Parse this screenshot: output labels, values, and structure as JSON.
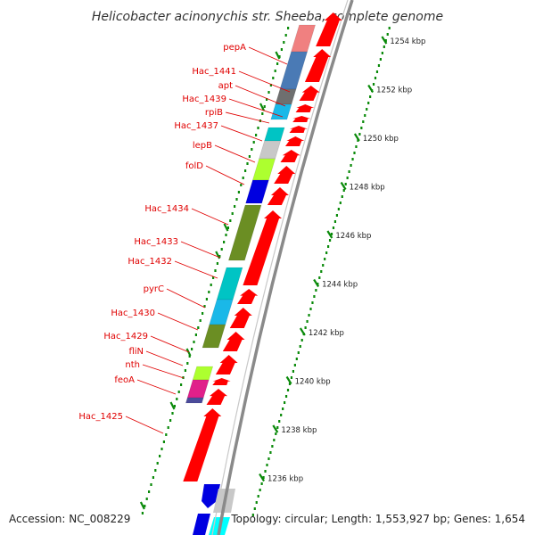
{
  "title": "Helicobacter acinonychis str. Sheeba, complete genome",
  "footer": {
    "accession": "Accession: NC_008229",
    "topology": "Topology: circular; Length: 1,553,927 bp; Genes: 1,654"
  },
  "colors": {
    "forward_cds": "#ff0000",
    "label": "#e00000",
    "backbone": "#8a8a8a",
    "scale_dots": "#0a8a0a"
  },
  "scale": {
    "unit": "kbp",
    "ticks": [
      "1254 kbp",
      "1252 kbp",
      "1250 kbp",
      "1248 kbp",
      "1246 kbp",
      "1244 kbp",
      "1242 kbp",
      "1240 kbp",
      "1238 kbp",
      "1236 kbp"
    ]
  },
  "gene_labels": [
    "pepA",
    "Hac_1441",
    "apt",
    "Hac_1439",
    "rpiB",
    "Hac_1437",
    "lepB",
    "folD",
    "Hac_1434",
    "Hac_1433",
    "Hac_1432",
    "pyrC",
    "Hac_1430",
    "Hac_1429",
    "fliN",
    "nth",
    "feoA",
    "Hac_1425"
  ],
  "cog_colors": [
    "#f08080",
    "#4a7ab5",
    "#6f6f6f",
    "#1ab8e8",
    "#00c4c4",
    "#c8c8c8",
    "#adff2f",
    "#0000e0",
    "#6b8e23",
    "#e0208a",
    "#4b4b9a",
    "#00ffff"
  ]
}
